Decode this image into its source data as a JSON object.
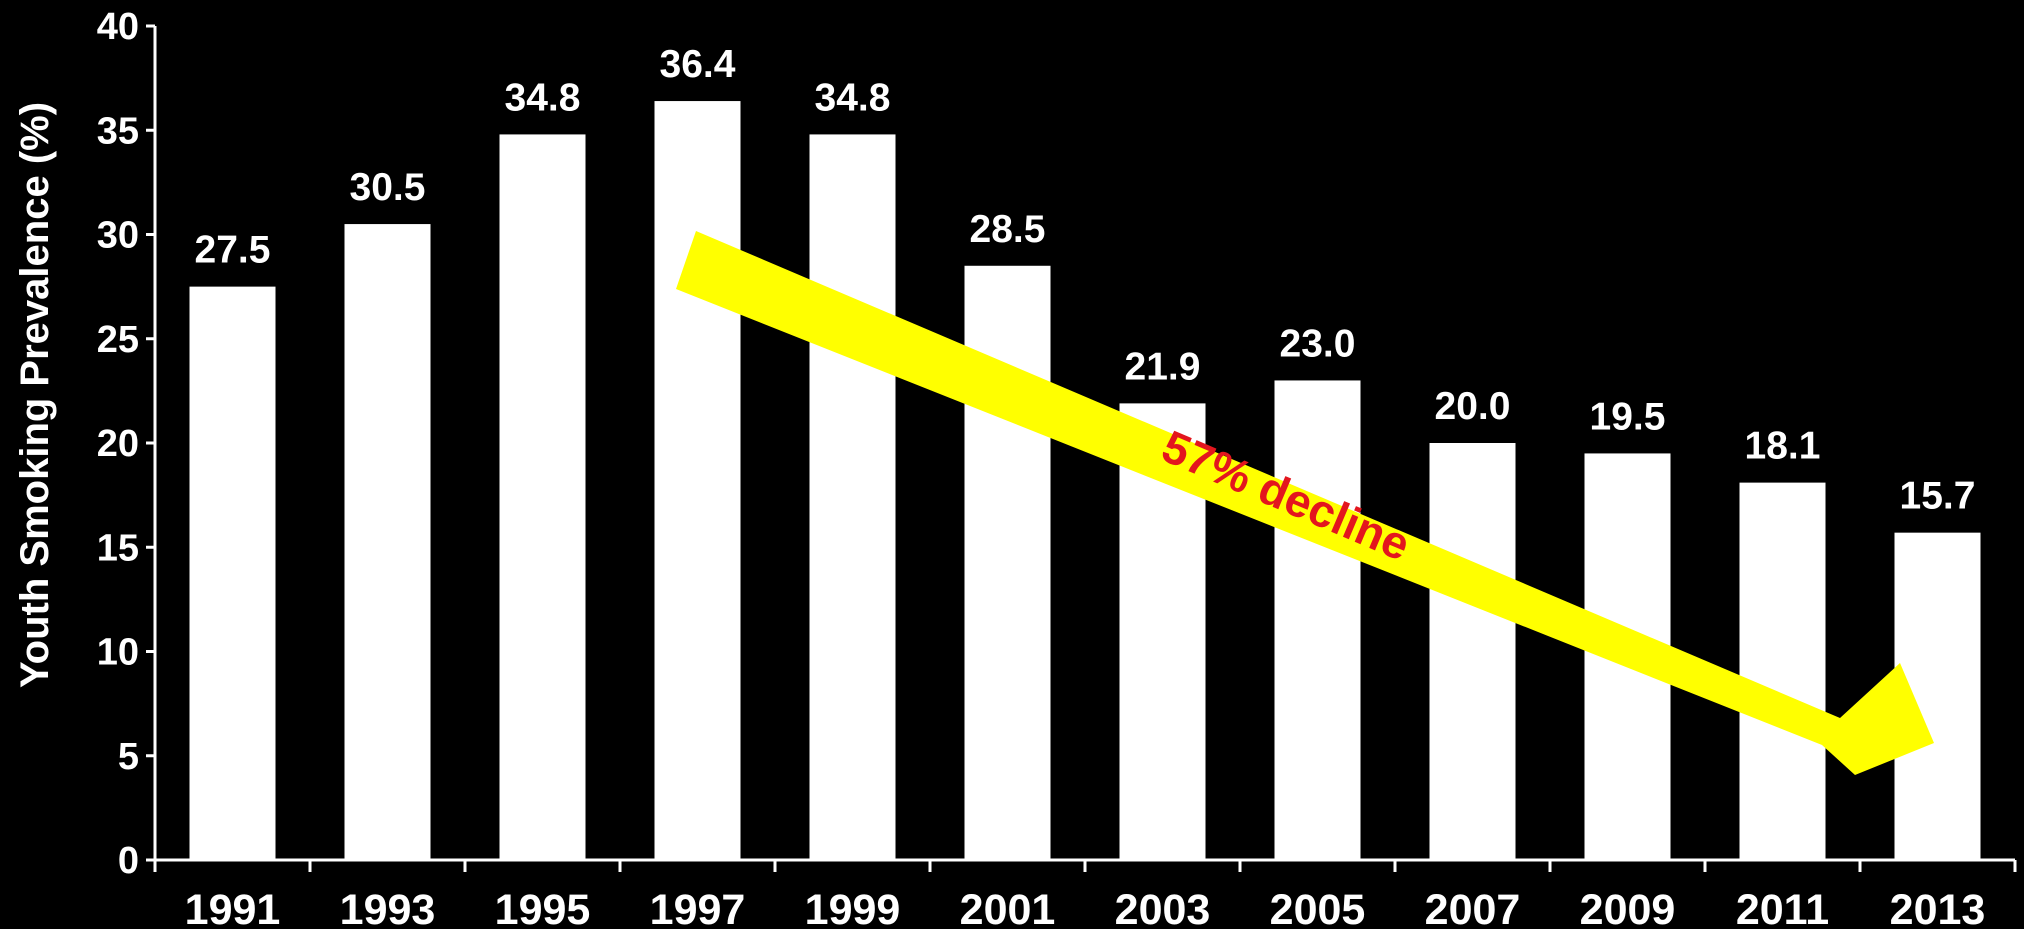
{
  "chart_data": {
    "type": "bar",
    "title": "",
    "xlabel": "",
    "ylabel": "Youth Smoking Prevalence (%)",
    "categories": [
      "1991",
      "1993",
      "1995",
      "1997",
      "1999",
      "2001",
      "2003",
      "2005",
      "2007",
      "2009",
      "2011",
      "2013"
    ],
    "values": [
      27.5,
      30.5,
      34.8,
      36.4,
      34.8,
      28.5,
      21.9,
      23.0,
      20.0,
      19.5,
      18.1,
      15.7
    ],
    "value_labels": [
      "27.5",
      "30.5",
      "34.8",
      "36.4",
      "34.8",
      "28.5",
      "21.9",
      "23.0",
      "20.0",
      "19.5",
      "18.1",
      "15.7"
    ],
    "ylim": [
      0,
      40
    ],
    "yticks": [
      "0",
      "5",
      "10",
      "15",
      "20",
      "25",
      "30",
      "35",
      "40"
    ],
    "grid": false,
    "bar_color": "#ffffff",
    "background_color": "#000000",
    "annotation": {
      "text": "57% decline",
      "text_color": "#e3161e",
      "arrow_color": "#ffff00",
      "direction": "downward trend from 1997 to 2013"
    }
  }
}
